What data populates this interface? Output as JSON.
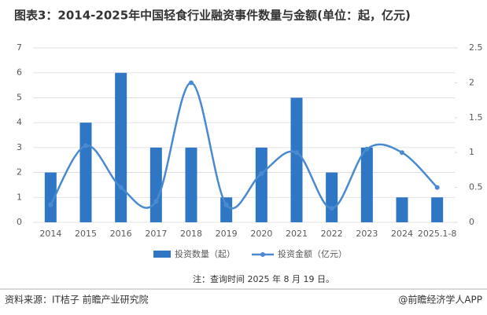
{
  "chart_data": {
    "type": "bar-line",
    "title": "图表3：2014-2025年中国轻食行业融资事件数量与金额(单位：起，亿元)",
    "categories": [
      "2014",
      "2015",
      "2016",
      "2017",
      "2018",
      "2019",
      "2020",
      "2021",
      "2022",
      "2023",
      "2024",
      "2025.1-8"
    ],
    "series": [
      {
        "name": "投资数量（起）",
        "color": "#2f77c4",
        "type": "bar",
        "values": [
          2,
          4,
          6,
          3,
          3,
          1,
          3,
          5,
          2,
          3,
          1,
          1
        ]
      },
      {
        "name": "投资金额（亿元）",
        "color": "#4a8ad0",
        "type": "line",
        "axis": "y2",
        "values": [
          0.25,
          1.1,
          0.5,
          0.3,
          2.0,
          0.25,
          0.7,
          1.0,
          0.2,
          1.05,
          1.0,
          0.5
        ]
      }
    ],
    "ylim": [
      0,
      7
    ],
    "yticks": [
      0,
      1,
      2,
      3,
      4,
      5,
      6,
      7
    ],
    "y2lim": [
      0,
      2.5
    ],
    "y2ticks": [
      0,
      0.5,
      1,
      1.5,
      2,
      2.5
    ],
    "grid": true,
    "legend": "bottom",
    "note": "注：查询时间 2025 年 8 月 19 日。",
    "source": "资料来源：IT桔子 前瞻产业研究院",
    "brand": "@前瞻经济学人APP"
  }
}
